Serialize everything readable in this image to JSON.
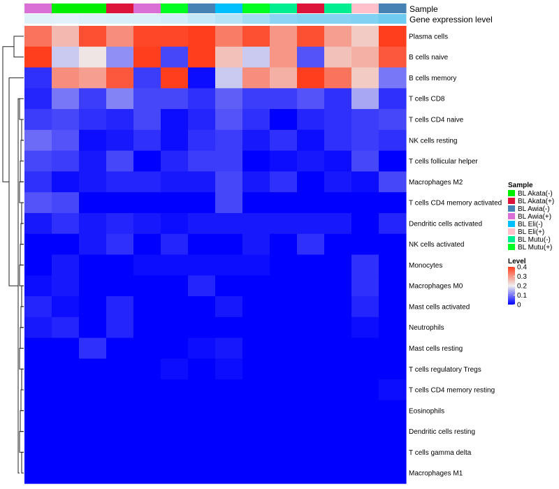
{
  "chart_data": {
    "type": "heatmap",
    "title": "",
    "annotation_tracks": [
      "Sample",
      "Gene expression level"
    ],
    "rows": [
      "Plasma cells",
      "B cells naive",
      "B cells memory",
      "T cells CD8",
      "T cells CD4 naive",
      "NK cells resting",
      "T cells follicular helper",
      "Macrophages M2",
      "T cells CD4 memory activated",
      "Dendritic cells activated",
      "NK cells activated",
      "Monocytes",
      "Macrophages M0",
      "Mast cells activated",
      "Neutrophils",
      "Mast cells resting",
      "T cells regulatory  Tregs",
      "T cells CD4 memory resting",
      "Eosinophils",
      "Dendritic cells resting",
      "T cells gamma delta",
      "Macrophages M1"
    ],
    "sample_per_column": [
      "BL Awia(+)",
      "BL Akata(-)",
      "BL Akata(-)",
      "BL Akata(+)",
      "BL Awia(+)",
      "BL Mutu(+)",
      "BL Awia(-)",
      "BL Eli(-)",
      "BL Mutu(+)",
      "BL Mutu(-)",
      "BL Akata(+)",
      "BL Mutu(-)",
      "BL Eli(+)",
      "BL Awia(-)"
    ],
    "expression_level_per_column": [
      0.1,
      0.08,
      0.13,
      0.15,
      0.15,
      0.2,
      0.3,
      0.4,
      0.55,
      0.7,
      0.75,
      0.75,
      0.78,
      0.9
    ],
    "values": [
      [
        0.34,
        0.26,
        0.38,
        0.31,
        0.39,
        0.39,
        0.41,
        0.33,
        0.38,
        0.3,
        0.38,
        0.29,
        0.24,
        0.4
      ],
      [
        0.42,
        0.17,
        0.21,
        0.12,
        0.42,
        0.06,
        0.43,
        0.25,
        0.17,
        0.3,
        0.07,
        0.25,
        0.27,
        0.37
      ],
      [
        0.04,
        0.31,
        0.29,
        0.37,
        0.05,
        0.42,
        0.01,
        0.17,
        0.31,
        0.27,
        0.42,
        0.34,
        0.24,
        0.1
      ],
      [
        0.03,
        0.1,
        0.05,
        0.11,
        0.06,
        0.06,
        0.04,
        0.08,
        0.05,
        0.05,
        0.07,
        0.04,
        0.14,
        0.04
      ],
      [
        0.05,
        0.06,
        0.04,
        0.03,
        0.06,
        0.01,
        0.03,
        0.07,
        0.04,
        0.0,
        0.03,
        0.04,
        0.05,
        0.06
      ],
      [
        0.09,
        0.07,
        0.01,
        0.02,
        0.04,
        0.01,
        0.04,
        0.05,
        0.02,
        0.04,
        0.01,
        0.04,
        0.05,
        0.04
      ],
      [
        0.06,
        0.05,
        0.02,
        0.06,
        0.0,
        0.03,
        0.05,
        0.05,
        0.0,
        0.01,
        0.02,
        0.01,
        0.06,
        0.0
      ],
      [
        0.04,
        0.01,
        0.02,
        0.03,
        0.03,
        0.02,
        0.02,
        0.06,
        0.02,
        0.04,
        0.0,
        0.02,
        0.01,
        0.06
      ],
      [
        0.07,
        0.06,
        0.0,
        0.0,
        0.0,
        0.0,
        0.0,
        0.06,
        0.0,
        0.0,
        0.0,
        0.0,
        0.0,
        0.0
      ],
      [
        0.02,
        0.04,
        0.02,
        0.03,
        0.02,
        0.01,
        0.02,
        0.02,
        0.02,
        0.02,
        0.02,
        0.02,
        0.0,
        0.03
      ],
      [
        0.0,
        0.0,
        0.02,
        0.04,
        0.0,
        0.03,
        0.0,
        0.0,
        0.02,
        0.0,
        0.04,
        0.0,
        0.0,
        0.0
      ],
      [
        0.0,
        0.02,
        0.0,
        0.0,
        0.01,
        0.01,
        0.01,
        0.01,
        0.01,
        0.0,
        0.0,
        0.0,
        0.04,
        0.0
      ],
      [
        0.01,
        0.02,
        0.0,
        0.0,
        0.0,
        0.0,
        0.03,
        0.0,
        0.0,
        0.0,
        0.0,
        0.0,
        0.04,
        0.0
      ],
      [
        0.03,
        0.01,
        0.0,
        0.03,
        0.0,
        0.0,
        0.0,
        0.02,
        0.0,
        0.0,
        0.0,
        0.0,
        0.03,
        0.0
      ],
      [
        0.02,
        0.03,
        0.0,
        0.03,
        0.0,
        0.0,
        0.0,
        0.0,
        0.0,
        0.0,
        0.0,
        0.0,
        0.01,
        0.0
      ],
      [
        0.0,
        0.0,
        0.04,
        0.0,
        0.0,
        0.0,
        0.01,
        0.02,
        0.0,
        0.0,
        0.0,
        0.0,
        0.0,
        0.0
      ],
      [
        0.0,
        0.0,
        0.0,
        0.0,
        0.0,
        0.01,
        0.0,
        0.01,
        0.0,
        0.0,
        0.0,
        0.0,
        0.0,
        0.0
      ],
      [
        0.0,
        0.0,
        0.0,
        0.0,
        0.0,
        0.0,
        0.0,
        0.0,
        0.0,
        0.0,
        0.0,
        0.0,
        0.0,
        0.01
      ],
      [
        0.0,
        0.0,
        0.0,
        0.0,
        0.0,
        0.0,
        0.0,
        0.0,
        0.0,
        0.0,
        0.0,
        0.0,
        0.0,
        0.0
      ],
      [
        0.0,
        0.0,
        0.0,
        0.0,
        0.0,
        0.0,
        0.0,
        0.0,
        0.0,
        0.0,
        0.0,
        0.0,
        0.0,
        0.0
      ],
      [
        0.0,
        0.0,
        0.0,
        0.0,
        0.0,
        0.0,
        0.0,
        0.0,
        0.0,
        0.0,
        0.0,
        0.0,
        0.0,
        0.0
      ],
      [
        0.0,
        0.0,
        0.0,
        0.0,
        0.0,
        0.0,
        0.0,
        0.0,
        0.0,
        0.0,
        0.0,
        0.0,
        0.0,
        0.0
      ]
    ],
    "color_scale": {
      "min": 0,
      "max": 0.4,
      "low": "#0000ff",
      "mid": "#eeeeee",
      "high": "#ff3e1e",
      "mid_value": 0.2
    },
    "legend_sample": {
      "title": "Sample",
      "entries": [
        {
          "label": "BL Akata(-)",
          "color": "#00ee00"
        },
        {
          "label": "BL Akata(+)",
          "color": "#dc143c"
        },
        {
          "label": "BL Awia(-)",
          "color": "#4682b4"
        },
        {
          "label": "BL Awia(+)",
          "color": "#da70d6"
        },
        {
          "label": "BL Eli(-)",
          "color": "#00bfff"
        },
        {
          "label": "BL Eli(+)",
          "color": "#ffc0cb"
        },
        {
          "label": "BL Mutu(-)",
          "color": "#00ee90"
        },
        {
          "label": "BL Mutu(+)",
          "color": "#00ff20"
        }
      ]
    },
    "legend_level": {
      "title": "Level",
      "ticks": [
        "0.4",
        "0.3",
        "0.2",
        "0.1",
        "0"
      ],
      "tick_values": [
        0.4,
        0.3,
        0.2,
        0.1,
        0
      ]
    },
    "expression_bar_colors": {
      "low": "#eef6fb",
      "high": "#62c6ef"
    }
  }
}
